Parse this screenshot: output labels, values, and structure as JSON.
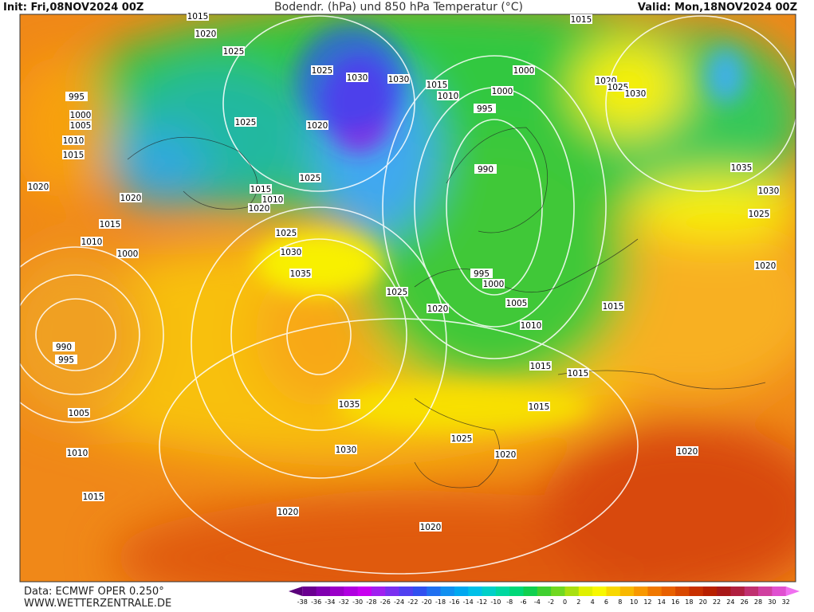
{
  "header": {
    "init": "Init: Fri,08NOV2024 00Z",
    "title": "Bodendr. (hPa) und 850 hPa Temperatur (°C)",
    "valid": "Valid: Mon,18NOV2024 00Z"
  },
  "footer": {
    "data": "Data: ECMWF OPER 0.250°",
    "site": "WWW.WETTERZENTRALE.DE"
  },
  "colorbar": {
    "labels": [
      -38,
      -36,
      -34,
      -32,
      -30,
      -28,
      -26,
      -24,
      -22,
      -20,
      -18,
      -16,
      -14,
      -12,
      -10,
      -8,
      -6,
      -4,
      -2,
      0,
      2,
      4,
      6,
      8,
      10,
      12,
      14,
      16,
      18,
      20,
      22,
      24,
      26,
      28,
      30,
      32
    ],
    "colors": [
      "#5a007a",
      "#6a0090",
      "#8000b0",
      "#9a00c8",
      "#b000e0",
      "#c800f0",
      "#a020f0",
      "#7a30f0",
      "#5040f0",
      "#3050f0",
      "#2070f0",
      "#1090f0",
      "#00a8f0",
      "#00c0e8",
      "#00d0c8",
      "#00d8a0",
      "#00d878",
      "#10d050",
      "#40d030",
      "#70d820",
      "#a8e010",
      "#e0f000",
      "#f8f800",
      "#f8d800",
      "#f8b800",
      "#f89800",
      "#f07800",
      "#e86000",
      "#d84800",
      "#c83000",
      "#b82000",
      "#a81818",
      "#b02040",
      "#c03070",
      "#d040a0",
      "#e050d0",
      "#f070f0"
    ]
  },
  "isobar_labels": [
    1015,
    1020,
    1025,
    1025,
    1030,
    1030,
    1015,
    1010,
    1000,
    1000,
    995,
    1015,
    1020,
    1025,
    1030,
    995,
    1000,
    1005,
    1010,
    1015,
    1020,
    1025,
    1020,
    1025,
    1015,
    1010,
    1020,
    1020,
    1015,
    1010,
    1000,
    1025,
    1030,
    1035,
    990,
    995,
    1000,
    1005,
    1010,
    1025,
    1020,
    1015,
    1035,
    1030,
    1025,
    1020,
    990,
    995,
    1005,
    1035,
    1015,
    1015,
    1015,
    1025,
    1020,
    1030,
    1010,
    1015,
    1020,
    1020,
    1020
  ]
}
